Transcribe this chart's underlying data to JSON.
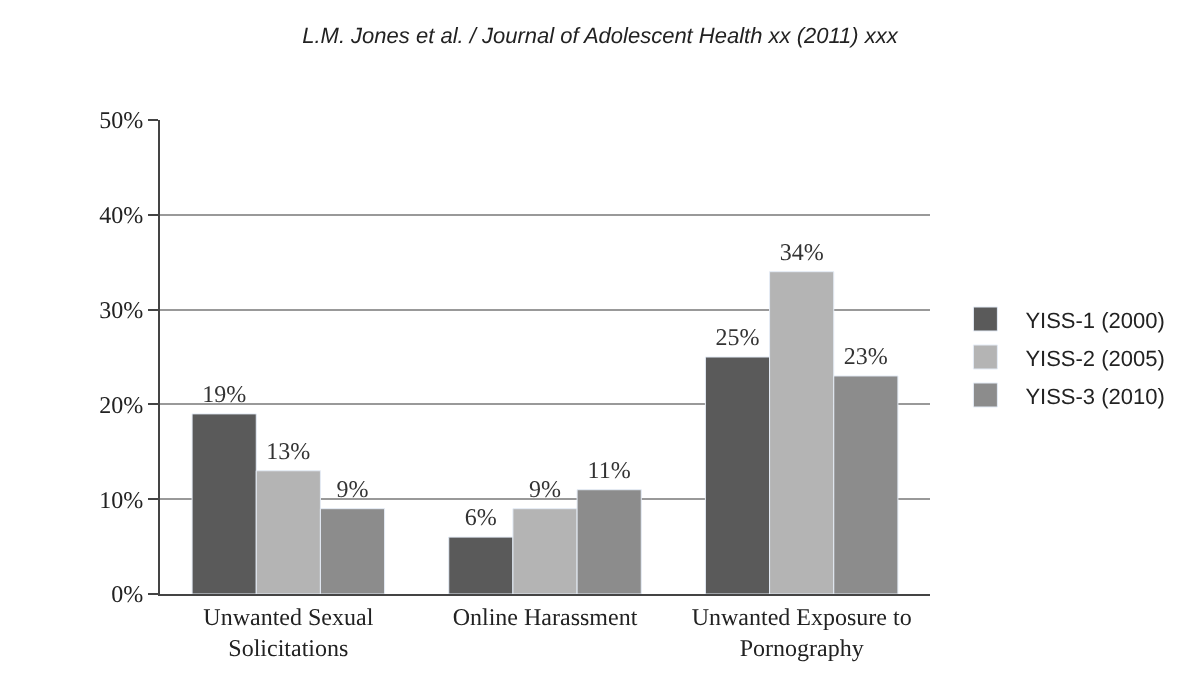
{
  "chart_data": {
    "type": "bar",
    "title": "L.M. Jones et al. / Journal of Adolescent Health xx (2011) xxx",
    "categories": [
      "Unwanted Sexual\nSolicitations",
      "Online Harassment",
      "Unwanted Exposure to\nPornography"
    ],
    "series": [
      {
        "name": "YISS-1 (2000)",
        "color": "#5a5a5a",
        "values": [
          19,
          6,
          25
        ],
        "value_labels": [
          "19%",
          "6%",
          "25%"
        ]
      },
      {
        "name": "YISS-2 (2005)",
        "color": "#b4b4b4",
        "values": [
          13,
          9,
          34
        ],
        "value_labels": [
          "13%",
          "9%",
          "34%"
        ]
      },
      {
        "name": "YISS-3 (2010)",
        "color": "#8c8c8c",
        "values": [
          9,
          11,
          23
        ],
        "value_labels": [
          "9%",
          "11%",
          "23%"
        ]
      }
    ],
    "ylim": [
      0,
      50
    ],
    "yticks": [
      {
        "value": 0,
        "label": "0%"
      },
      {
        "value": 10,
        "label": "10%"
      },
      {
        "value": 20,
        "label": "20%"
      },
      {
        "value": 30,
        "label": "30%"
      },
      {
        "value": 40,
        "label": "40%"
      },
      {
        "value": 50,
        "label": "50%"
      }
    ],
    "grid": "y",
    "legend": "right"
  }
}
